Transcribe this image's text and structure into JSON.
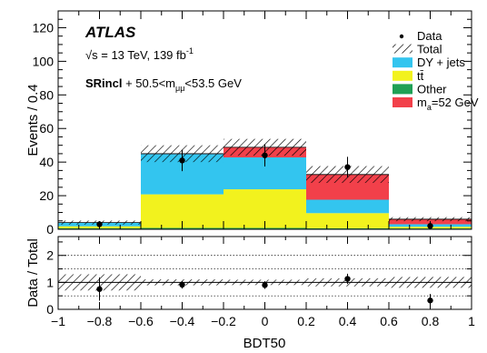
{
  "chart_data": {
    "type": "bar",
    "subtype": "stacked-histogram-with-ratio",
    "experiment_label": "ATLAS",
    "energy_label": "√s = 13 TeV,   139  fb",
    "energy_sup": "-1",
    "region_label_bold": "SRincl",
    "region_label_rest": " + 50.5<m",
    "region_label_sub": "μμ",
    "region_label_tail": "<53.5 GeV",
    "xlabel": "BDT50",
    "ylabel": "Events / 0.4",
    "ratio_ylabel": "Data / Total",
    "xlim": [
      -1,
      1
    ],
    "ylim": [
      0,
      130
    ],
    "ratio_ylim": [
      0,
      2.7
    ],
    "x_ticks": [
      "−1",
      "−0.8",
      "−0.6",
      "−0.4",
      "−0.2",
      "0",
      "0.2",
      "0.4",
      "0.6",
      "0.8",
      "1"
    ],
    "y_ticks": [
      "0",
      "20",
      "40",
      "60",
      "80",
      "100",
      "120"
    ],
    "ratio_y_ticks": [
      "0",
      "1",
      "2"
    ],
    "bin_edges": [
      -1,
      -0.6,
      -0.2,
      0.2,
      0.6,
      1.0
    ],
    "series": [
      {
        "name": "Other",
        "color": "#1fa055",
        "values": [
          0.6,
          0.8,
          0.8,
          0.6,
          0.5
        ]
      },
      {
        "name": "tt̄",
        "color": "#f2f21e",
        "values": [
          1.2,
          20.0,
          23.0,
          9.0,
          1.0
        ]
      },
      {
        "name": "DY + jets",
        "color": "#33c5ef",
        "values": [
          2.0,
          24.0,
          19.0,
          8.0,
          1.5
        ]
      },
      {
        "name": "m=52 GeV",
        "color": "#f2404a",
        "values": [
          0.2,
          0.2,
          6.0,
          15.0,
          3.0
        ]
      }
    ],
    "total": {
      "name": "Total",
      "values": [
        4.0,
        45.0,
        48.8,
        32.6,
        6.0
      ],
      "uncertainty": [
        1.2,
        5.0,
        5.0,
        5.0,
        1.2
      ]
    },
    "data": {
      "name": "Data",
      "x": [
        -0.8,
        -0.4,
        0.0,
        0.4,
        0.8
      ],
      "y": [
        3.0,
        41.0,
        44.0,
        37.0,
        2.0
      ],
      "err": [
        1.7,
        6.4,
        6.6,
        6.1,
        1.4
      ]
    },
    "ratio": {
      "x": [
        -0.8,
        -0.4,
        0.0,
        0.4,
        0.8
      ],
      "y": [
        0.75,
        0.91,
        0.9,
        1.13,
        0.33
      ],
      "err": [
        0.43,
        0.14,
        0.14,
        0.19,
        0.24
      ],
      "band": [
        0.3,
        0.11,
        0.1,
        0.15,
        0.2
      ],
      "reference_lines": [
        0.5,
        1.0,
        1.5,
        2.0
      ]
    },
    "legend": {
      "placement": "top-right",
      "entries": [
        {
          "label": "Data",
          "style": "marker"
        },
        {
          "label": "Total",
          "style": "hatch"
        },
        {
          "label": "DY + jets",
          "style": "fill",
          "color": "#33c5ef"
        },
        {
          "label": "tt̄",
          "style": "fill",
          "color": "#f2f21e"
        },
        {
          "label": "Other",
          "style": "fill",
          "color": "#1fa055"
        },
        {
          "label": "m",
          "sub": "a",
          "tail": "=52 GeV",
          "style": "fill",
          "color": "#f2404a"
        }
      ]
    }
  }
}
